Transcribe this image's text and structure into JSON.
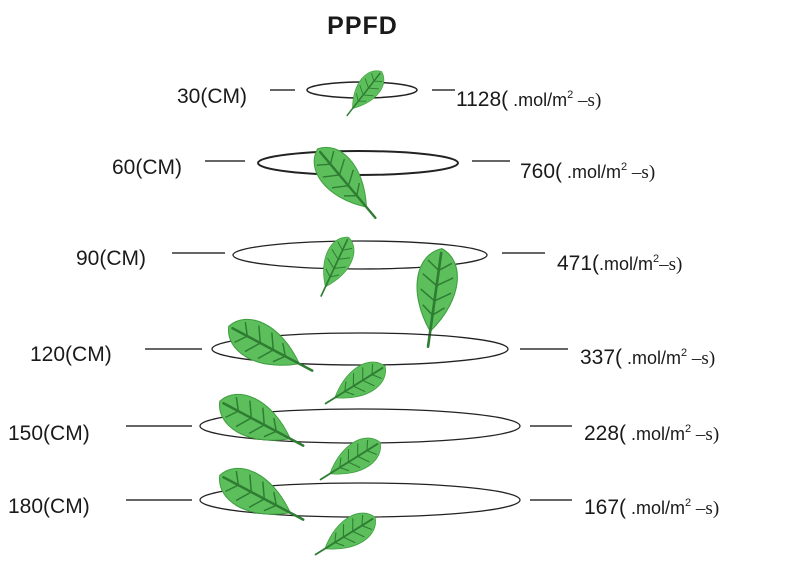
{
  "title": "PPFD",
  "levels": [
    {
      "distance": "30(CM)",
      "value": "1128(",
      "unit": " .mol/m",
      "sup": "2",
      "dash": " –s)"
    },
    {
      "distance": "60(CM)",
      "value": "760(",
      "unit": " .mol/m",
      "sup": "2",
      "dash": " –s)"
    },
    {
      "distance": "90(CM)",
      "value": "471(",
      "unit": ".mol/m",
      "sup": "2",
      "dash": "–s)"
    },
    {
      "distance": "120(CM)",
      "value": "337(",
      "unit": " .mol/m",
      "sup": "2",
      "dash": " –s)"
    },
    {
      "distance": "150(CM)",
      "value": "228(",
      "unit": "  .mol/m",
      "sup": "2",
      "dash": " –s)"
    },
    {
      "distance": "180(CM)",
      "value": "167(",
      "unit": "  .mol/m",
      "sup": "2",
      "dash": " –s)"
    }
  ],
  "colors": {
    "leaf_fill": "#5cbf5c",
    "leaf_vein": "#2e7d32",
    "ellipse_stroke": "#222222",
    "line": "#333333"
  }
}
